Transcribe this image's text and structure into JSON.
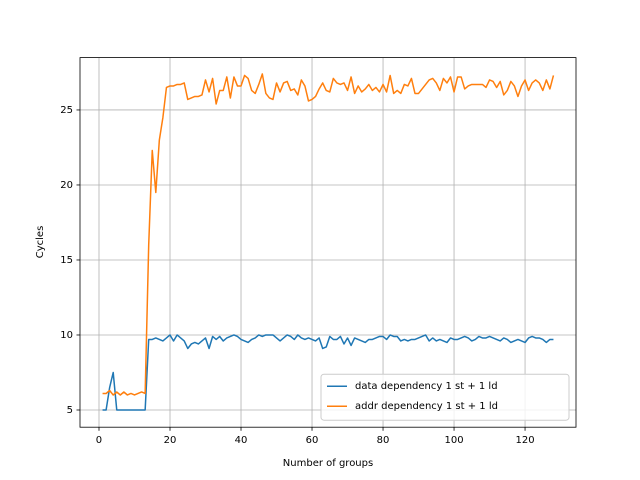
{
  "chart_data": {
    "type": "line",
    "x_label": "Number of groups",
    "y_label": "Cycles",
    "x": [
      1,
      2,
      3,
      4,
      5,
      6,
      7,
      8,
      9,
      10,
      11,
      12,
      13,
      14,
      15,
      16,
      17,
      18,
      19,
      20,
      21,
      22,
      23,
      24,
      25,
      26,
      27,
      28,
      29,
      30,
      31,
      32,
      33,
      34,
      35,
      36,
      37,
      38,
      39,
      40,
      41,
      42,
      43,
      44,
      45,
      46,
      47,
      48,
      49,
      50,
      51,
      52,
      53,
      54,
      55,
      56,
      57,
      58,
      59,
      60,
      61,
      62,
      63,
      64,
      65,
      66,
      67,
      68,
      69,
      70,
      71,
      72,
      73,
      74,
      75,
      76,
      77,
      78,
      79,
      80,
      81,
      82,
      83,
      84,
      85,
      86,
      87,
      88,
      89,
      90,
      91,
      92,
      93,
      94,
      95,
      96,
      97,
      98,
      99,
      100,
      101,
      102,
      103,
      104,
      105,
      106,
      107,
      108,
      109,
      110,
      111,
      112,
      113,
      114,
      115,
      116,
      117,
      118,
      119,
      120,
      121,
      122,
      123,
      124,
      125,
      126,
      127,
      128
    ],
    "series": [
      {
        "name": "data dependency 1 st + 1 ld",
        "color": "#1f77b4",
        "values": [
          5,
          5,
          6.5,
          7.5,
          5,
          5,
          5,
          5,
          5,
          5,
          5,
          5,
          5,
          9.7,
          9.7,
          9.8,
          9.7,
          9.6,
          9.8,
          10,
          9.6,
          10,
          9.8,
          9.6,
          9.1,
          9.4,
          9.5,
          9.4,
          9.6,
          9.8,
          9.1,
          9.9,
          9.7,
          9.9,
          9.6,
          9.8,
          9.9,
          10,
          9.9,
          9.7,
          9.6,
          9.5,
          9.7,
          9.8,
          10,
          9.9,
          10,
          10,
          10,
          9.8,
          9.6,
          9.8,
          10,
          9.9,
          9.7,
          10,
          9.8,
          9.7,
          9.8,
          9.7,
          9.6,
          9.8,
          9.1,
          9.2,
          9.9,
          9.7,
          9.7,
          9.9,
          9.4,
          9.8,
          9.3,
          9.8,
          9.7,
          9.6,
          9.5,
          9.7,
          9.7,
          9.8,
          9.9,
          9.9,
          9.7,
          10,
          9.9,
          9.9,
          9.6,
          9.7,
          9.6,
          9.7,
          9.7,
          9.8,
          9.9,
          10,
          9.6,
          9.8,
          9.6,
          9.7,
          9.6,
          9.5,
          9.8,
          9.7,
          9.7,
          9.8,
          9.9,
          9.8,
          9.6,
          9.7,
          9.9,
          9.8,
          9.8,
          9.9,
          9.8,
          9.7,
          9.6,
          9.8,
          9.7,
          9.5,
          9.6,
          9.7,
          9.6,
          9.5,
          9.8,
          9.9,
          9.8,
          9.8,
          9.7,
          9.5,
          9.7,
          9.7
        ]
      },
      {
        "name": "addr dependency 1 st + 1 ld",
        "color": "#ff7f0e",
        "values": [
          6.1,
          6.1,
          6.3,
          6,
          6.2,
          6,
          6.2,
          6,
          6.1,
          6,
          6.1,
          6.2,
          6.1,
          16,
          22.3,
          19.5,
          23,
          24.5,
          26.5,
          26.6,
          26.6,
          26.7,
          26.7,
          26.8,
          25.7,
          25.8,
          25.9,
          25.9,
          26.0,
          27.0,
          26.2,
          27.1,
          25.4,
          26.3,
          26.3,
          27.2,
          25.8,
          27.2,
          26.6,
          26.6,
          27.3,
          27.1,
          26.3,
          26.1,
          26.7,
          27.4,
          26.1,
          25.8,
          25.7,
          26.8,
          26.2,
          26.8,
          26.9,
          26.3,
          26.4,
          26.0,
          27.0,
          26.6,
          25.6,
          25.7,
          25.9,
          26.4,
          26.8,
          26.3,
          26.2,
          27.1,
          26.8,
          26.7,
          26.8,
          26.3,
          27.2,
          26.1,
          26.6,
          26.2,
          26.4,
          26.7,
          26.3,
          26.5,
          26.2,
          26.7,
          26.2,
          27.3,
          26.1,
          26.3,
          26.1,
          26.7,
          26.6,
          27.1,
          26.1,
          26.1,
          26.4,
          26.7,
          27.0,
          27.1,
          26.8,
          26.3,
          27.1,
          26.8,
          27.2,
          26.2,
          27.2,
          27.2,
          26.4,
          26.6,
          26.7,
          26.7,
          26.7,
          26.7,
          26.5,
          27.0,
          26.9,
          26.5,
          26.9,
          26.0,
          26.3,
          26.9,
          26.6,
          25.9,
          26.6,
          27.0,
          26.3,
          26.8,
          27.0,
          26.8,
          26.3,
          27.0,
          26.4,
          27.3
        ]
      }
    ],
    "xlim": [
      -5.35,
      134.35
    ],
    "ylim": [
      3.853,
      28.49
    ],
    "xticks": [
      0,
      20,
      40,
      60,
      80,
      100,
      120
    ],
    "yticks": [
      5,
      10,
      15,
      20,
      25
    ],
    "grid": true,
    "legend": "lower right"
  }
}
